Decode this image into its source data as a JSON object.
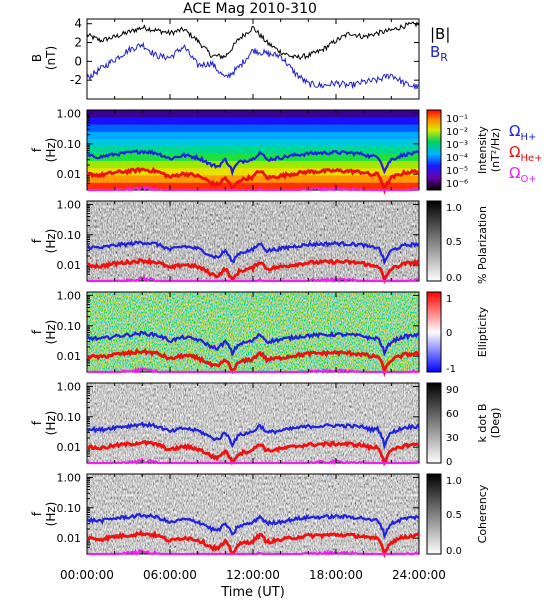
{
  "chart_data": [
    {
      "type": "line",
      "title": "ACE Mag 2010-310",
      "ylabel": "B",
      "yunit": "(nT)",
      "ylim": [
        -4,
        4.5
      ],
      "yticks": [
        "4",
        "2",
        "0",
        "-2"
      ],
      "legend": [
        {
          "label": "|B|",
          "color": "#000000"
        },
        {
          "label": "B",
          "sub": "R",
          "color": "#2222cc"
        }
      ],
      "series": [
        {
          "color": "#000000",
          "x": [
            0,
            1,
            2,
            3,
            4,
            5,
            6,
            7,
            8,
            9,
            10,
            11,
            12,
            13,
            14,
            15,
            16,
            17,
            18,
            19,
            20,
            21,
            22,
            23,
            24
          ],
          "values": [
            2.8,
            2.2,
            2.6,
            3.1,
            3.6,
            3.3,
            3.0,
            3.4,
            2.2,
            0.6,
            0.5,
            2.4,
            3.6,
            2.0,
            1.0,
            0.4,
            0.6,
            1.2,
            2.2,
            3.0,
            2.6,
            3.0,
            3.3,
            3.8,
            4.0
          ]
        },
        {
          "color": "#2222cc",
          "x": [
            0,
            1,
            2,
            3,
            4,
            5,
            6,
            7,
            8,
            9,
            10,
            11,
            12,
            13,
            14,
            15,
            16,
            17,
            18,
            19,
            20,
            21,
            22,
            23,
            24
          ],
          "values": [
            -1.8,
            -0.8,
            0.2,
            1.2,
            1.8,
            0.6,
            0.4,
            1.6,
            -0.4,
            -0.2,
            -1.8,
            -0.6,
            1.2,
            0.8,
            0.6,
            -1.2,
            -2.4,
            -2.6,
            -2.3,
            -2.6,
            -2.2,
            -2.0,
            -1.4,
            -2.4,
            -2.8
          ]
        }
      ]
    },
    {
      "type": "heatmap",
      "ylabel": "f",
      "yunit": "(Hz)",
      "yscale": "log",
      "ylim": [
        0.003,
        1.3
      ],
      "yticks": [
        "1.00",
        "0.10",
        "0.01"
      ],
      "colorbar": {
        "label": "Intensity",
        "unit": "(nT²/Hz)",
        "ticks": [
          "10⁻¹",
          "10⁻²",
          "10⁻³",
          "10⁻⁴",
          "10⁻⁵",
          "10⁻⁶"
        ]
      },
      "legend": [
        {
          "label": "Ω",
          "sub": "H+",
          "color": "#2222dd"
        },
        {
          "label": "Ω",
          "sub": "He+",
          "color": "#ee1111"
        },
        {
          "label": "Ω",
          "sub": "O+",
          "color": "#ee22ee"
        }
      ]
    },
    {
      "type": "heatmap",
      "ylabel": "f",
      "yunit": "(Hz)",
      "yticks": [
        "1.00",
        "0.10",
        "0.01"
      ],
      "colorbar": {
        "label": "% Polarization",
        "ticks": [
          "1.0",
          "0.5",
          "0.0"
        ]
      }
    },
    {
      "type": "heatmap",
      "ylabel": "f",
      "yunit": "(Hz)",
      "yticks": [
        "1.00",
        "0.10",
        "0.01"
      ],
      "colorbar": {
        "label": "Ellipticity",
        "ticks": [
          "1",
          "0",
          "-1"
        ]
      }
    },
    {
      "type": "heatmap",
      "ylabel": "f",
      "yunit": "(Hz)",
      "yticks": [
        "1.00",
        "0.10",
        "0.01"
      ],
      "colorbar": {
        "label": "k dot B",
        "unit": "(Deg)",
        "ticks": [
          "90",
          "60",
          "30",
          "0"
        ]
      }
    },
    {
      "type": "heatmap",
      "ylabel": "f",
      "yunit": "(Hz)",
      "yticks": [
        "1.00",
        "0.10",
        "0.01"
      ],
      "colorbar": {
        "label": "Coherency",
        "ticks": [
          "1.0",
          "0.5",
          "0.0"
        ]
      }
    }
  ],
  "gyro": {
    "x": [
      0,
      1,
      2,
      3,
      4,
      5,
      6,
      7,
      8,
      9,
      9.5,
      10,
      10.5,
      11,
      12,
      12.5,
      13,
      14,
      15,
      16,
      17,
      18,
      19,
      20,
      20.5,
      21,
      21.5,
      22,
      23,
      24
    ],
    "hplus": [
      0.04,
      0.037,
      0.045,
      0.05,
      0.057,
      0.05,
      0.032,
      0.042,
      0.035,
      0.02,
      0.018,
      0.03,
      0.012,
      0.025,
      0.032,
      0.052,
      0.03,
      0.035,
      0.042,
      0.048,
      0.05,
      0.052,
      0.05,
      0.046,
      0.038,
      0.04,
      0.012,
      0.03,
      0.045,
      0.05
    ]
  },
  "xaxis": {
    "ticks": [
      "00:00:00",
      "06:00:00",
      "12:00:00",
      "18:00:00",
      "24:00:00"
    ],
    "label": "Time (UT)",
    "range": [
      0,
      24
    ]
  }
}
